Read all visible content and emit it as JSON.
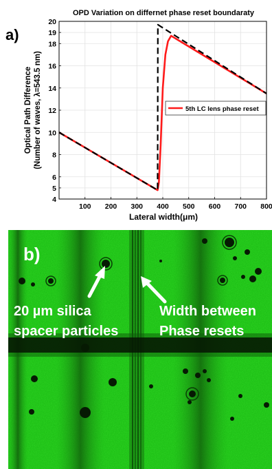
{
  "figure": {
    "panel_a_label": "a)",
    "panel_b_label": "b)"
  },
  "chart_data": {
    "type": "line",
    "title": "OPD Variation on differnet phase reset boundaraty",
    "xlabel": "Lateral width(μm)",
    "ylabel_line1": "Optical Path Difference",
    "ylabel_line2": "(Number of waves, λ=543.5 nm)",
    "xlim": [
      0,
      800
    ],
    "ylim": [
      4,
      20
    ],
    "xticks": [
      100,
      200,
      300,
      400,
      500,
      600,
      700,
      800
    ],
    "yticks": [
      4,
      5,
      6,
      8,
      10,
      12,
      14,
      16,
      18,
      19,
      20
    ],
    "grid": true,
    "legend_position": "middle-right",
    "series": [
      {
        "name": "",
        "style": "dashed",
        "color": "#000000",
        "x": [
          0,
          380,
          381,
          800
        ],
        "y": [
          10.0,
          4.8,
          19.7,
          13.5
        ]
      },
      {
        "name": "5th LC lens phase reset",
        "style": "solid",
        "color": "#ff1a1a",
        "x": [
          0,
          380,
          385,
          392,
          400,
          410,
          420,
          432,
          800
        ],
        "y": [
          10.0,
          4.8,
          5.5,
          9.0,
          14.0,
          17.0,
          18.2,
          18.7,
          13.5
        ]
      }
    ]
  },
  "micrograph": {
    "label_left_line1": "20 µm silica",
    "label_left_line2": "spacer particles",
    "label_right_line1": "Width between",
    "label_right_line2": "Phase resets",
    "colors": {
      "background": "#22c41a",
      "dark_band": "#0b2a06",
      "arrow": "#ffffff"
    }
  }
}
